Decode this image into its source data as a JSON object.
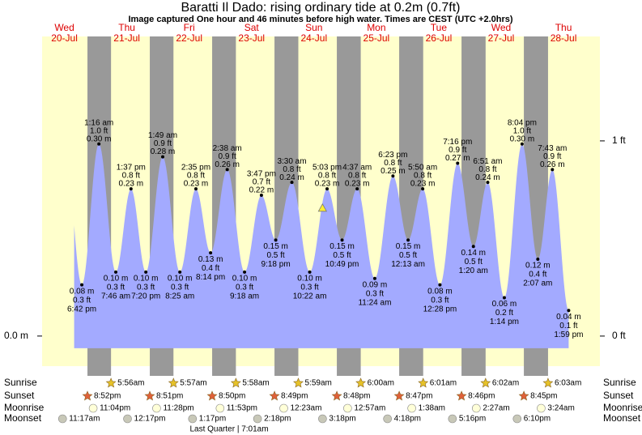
{
  "chart_data": {
    "type": "tide",
    "title": "Baratti Il Dado: rising  ordinary tide at 0.2m (0.7ft)",
    "subtitle": "Image captured One hour and 46 minutes before high water. Times are CEST (UTC +2.0hrs)",
    "days": [
      "Wed",
      "Thu",
      "Fri",
      "Sat",
      "Sun",
      "Mon",
      "Tue",
      "Wed",
      "Thu"
    ],
    "categories": [
      "20-Jul",
      "21-Jul",
      "22-Jul",
      "23-Jul",
      "24-Jul",
      "25-Jul",
      "26-Jul",
      "27-Jul",
      "28-Jul"
    ],
    "xlim": [
      "20-Jul 03:25",
      "29-Jul 02:00"
    ],
    "ylim": [
      -0.047,
      0.468
    ],
    "yticks": [
      {
        "value": 0,
        "label": "0.0 m"
      }
    ],
    "y2lim": [
      -0.154,
      1.535
    ],
    "y2ticks": [
      {
        "value": 1,
        "label": "1 ft"
      },
      {
        "value": 0,
        "label": "0 ft"
      }
    ],
    "colors": {
      "day": "#ffffcc",
      "night": "#999999",
      "water": "#a3aaff",
      "date": "#dd0000"
    },
    "tides": {
      "x": [
        "20-Jul 18:42",
        "21-Jul 01:16",
        "21-Jul 07:46",
        "21-Jul 13:37",
        "21-Jul 19:20",
        "22-Jul 01:49",
        "22-Jul 08:25",
        "22-Jul 14:35",
        "22-Jul 20:14",
        "23-Jul 02:38",
        "23-Jul 09:18",
        "23-Jul 15:47",
        "23-Jul 21:18",
        "24-Jul 03:30",
        "24-Jul 10:22",
        "24-Jul 17:03",
        "24-Jul 22:49",
        "25-Jul 04:37",
        "25-Jul 11:24",
        "25-Jul 18:23",
        "26-Jul 00:13",
        "26-Jul 05:50",
        "26-Jul 12:28",
        "26-Jul 19:16",
        "27-Jul 01:20",
        "27-Jul 06:51",
        "27-Jul 13:14",
        "27-Jul 20:04",
        "28-Jul 02:07",
        "28-Jul 07:43",
        "28-Jul 13:59"
      ],
      "values": [
        0.08,
        0.3,
        0.1,
        0.23,
        0.1,
        0.28,
        0.1,
        0.23,
        0.13,
        0.26,
        0.1,
        0.22,
        0.15,
        0.24,
        0.1,
        0.23,
        0.15,
        0.23,
        0.09,
        0.25,
        0.15,
        0.23,
        0.08,
        0.27,
        0.14,
        0.24,
        0.06,
        0.3,
        0.12,
        0.26,
        0.04
      ],
      "value_labels": [
        "0.08 m",
        "0.30 m",
        "0.10 m",
        "0.23 m",
        "0.10 m",
        "0.28 m",
        "0.10 m",
        "0.23 m",
        "0.13 m",
        "0.26 m",
        "0.10 m",
        "0.22 m",
        "0.15 m",
        "0.24 m",
        "0.10 m",
        "0.23 m",
        "0.15 m",
        "0.23 m",
        "0.09 m",
        "0.25 m",
        "0.15 m",
        "0.23 m",
        "0.08 m",
        "0.27 m",
        "0.14 m",
        "0.24 m",
        "0.06 m",
        "0.30 m",
        "0.12 m",
        "0.26 m",
        "0.04 m"
      ],
      "ft_labels": [
        "0.3 ft",
        "1.0 ft",
        "0.3 ft",
        "0.8 ft",
        "0.3 ft",
        "0.9 ft",
        "0.3 ft",
        "0.8 ft",
        "0.4 ft",
        "0.9 ft",
        "0.3 ft",
        "0.7 ft",
        "0.5 ft",
        "0.8 ft",
        "0.3 ft",
        "0.8 ft",
        "0.5 ft",
        "0.8 ft",
        "0.3 ft",
        "0.8 ft",
        "0.5 ft",
        "0.8 ft",
        "0.3 ft",
        "0.9 ft",
        "0.5 ft",
        "0.8 ft",
        "0.2 ft",
        "1.0 ft",
        "0.4 ft",
        "0.9 ft",
        "0.1 ft"
      ],
      "time_labels": [
        "6:42 pm",
        "1:16 am",
        "7:46 am",
        "1:37 pm",
        "7:20 pm",
        "1:49 am",
        "8:25 am",
        "2:35 pm",
        "8:14 pm",
        "2:38 am",
        "9:18 am",
        "3:47 pm",
        "9:18 pm",
        "3:30 am",
        "10:22 am",
        "5:03 pm",
        "10:49 pm",
        "4:37 am",
        "11:24 am",
        "6:23 pm",
        "12:13 am",
        "5:50 am",
        "12:28 pm",
        "7:16 pm",
        "1:20 am",
        "6:51 am",
        "1:14 pm",
        "8:04 pm",
        "2:07 am",
        "7:43 am",
        "1:59 pm"
      ]
    },
    "now": {
      "x": "24-Jul 15:17",
      "value": 0.2
    },
    "events": [
      {
        "name": "Sunrise",
        "icon": "sun",
        "color": "#e6c229",
        "x": [
          "21-Jul 05:56",
          "22-Jul 05:57",
          "23-Jul 05:58",
          "24-Jul 05:59",
          "25-Jul 06:00",
          "26-Jul 06:01",
          "27-Jul 06:02",
          "28-Jul 06:03"
        ],
        "labels": [
          "5:56am",
          "5:57am",
          "5:58am",
          "5:59am",
          "6:00am",
          "6:01am",
          "6:02am",
          "6:03am"
        ]
      },
      {
        "name": "Sunset",
        "icon": "sun",
        "color": "#e0603a",
        "x": [
          "20-Jul 20:52",
          "21-Jul 20:51",
          "22-Jul 20:50",
          "23-Jul 20:49",
          "24-Jul 20:48",
          "25-Jul 20:47",
          "26-Jul 20:46",
          "27-Jul 20:45"
        ],
        "labels": [
          "8:52pm",
          "8:51pm",
          "8:50pm",
          "8:49pm",
          "8:48pm",
          "8:47pm",
          "8:46pm",
          "8:45pm"
        ]
      },
      {
        "name": "Moonrise",
        "icon": "moon",
        "color": "#ffffd8",
        "x": [
          "20-Jul 23:04",
          "21-Jul 23:28",
          "22-Jul 23:53",
          "24-Jul 00:23",
          "25-Jul 00:57",
          "26-Jul 01:38",
          "27-Jul 02:27",
          "28-Jul 03:24"
        ],
        "labels": [
          "11:04pm",
          "11:28pm",
          "11:53pm",
          "12:23am",
          "12:57am",
          "1:38am",
          "2:27am",
          "3:24am"
        ]
      },
      {
        "name": "Moonset",
        "icon": "moon",
        "color": "#c8c8b8",
        "x": [
          "20-Jul 11:17",
          "21-Jul 12:17",
          "22-Jul 13:17",
          "23-Jul 14:18",
          "24-Jul 15:18",
          "25-Jul 16:18",
          "26-Jul 17:16",
          "27-Jul 18:10"
        ],
        "labels": [
          "11:17am",
          "12:17pm",
          "1:17pm",
          "2:18pm",
          "3:18pm",
          "4:18pm",
          "5:16pm",
          "6:10pm"
        ]
      }
    ],
    "moon_phase": "Last Quarter | 7:01am"
  }
}
